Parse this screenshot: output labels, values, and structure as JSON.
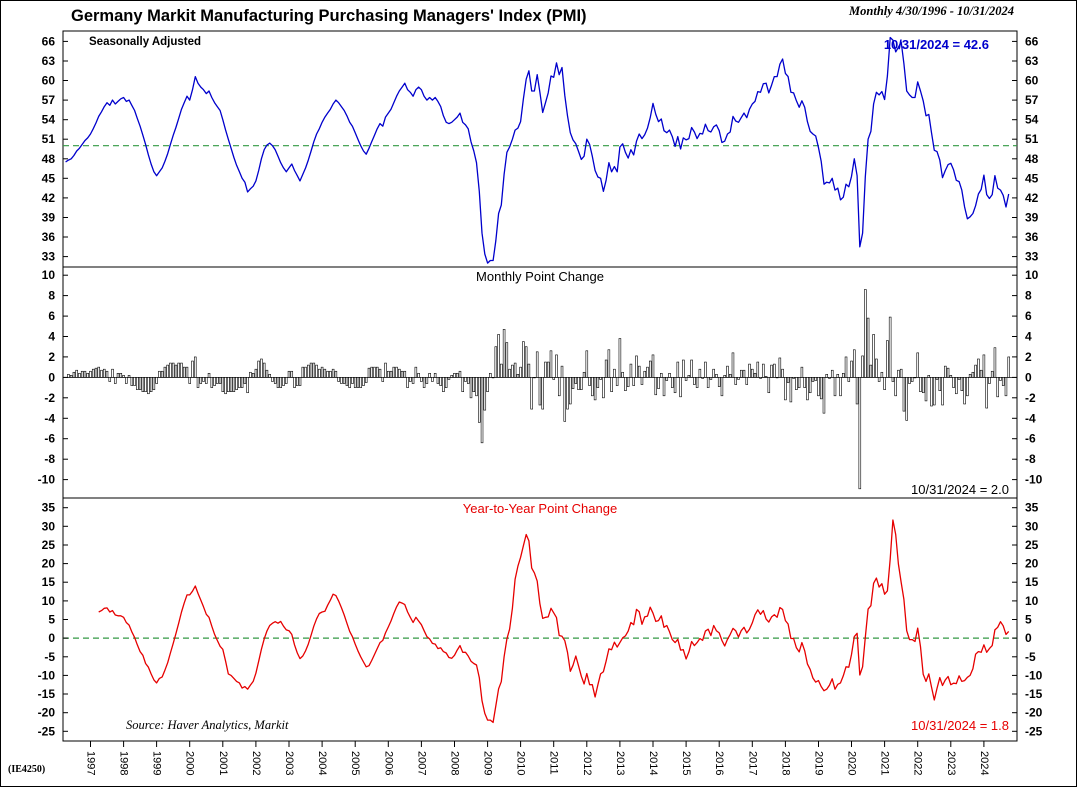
{
  "header": {
    "title": "Germany Markit Manufacturing Purchasing Managers' Index (PMI)",
    "date_range": "Monthly 4/30/1996 - 10/31/2024"
  },
  "source": "Source: Haver Analytics, Markit",
  "footer": {
    "code": "(IE4250)"
  },
  "colors": {
    "pmi_line": "#0000cc",
    "yoy_line": "#e60000",
    "bars": "#000000",
    "refline": "#339944"
  },
  "x_axis": {
    "tmin": 1996.17,
    "tmax": 2025.0,
    "year_labels": [
      "1997",
      "1998",
      "1999",
      "2000",
      "2001",
      "2002",
      "2003",
      "2004",
      "2005",
      "2006",
      "2007",
      "2008",
      "2009",
      "2010",
      "2011",
      "2012",
      "2013",
      "2014",
      "2015",
      "2016",
      "2017",
      "2018",
      "2019",
      "2020",
      "2021",
      "2022",
      "2023",
      "2024"
    ]
  },
  "chart_data": [
    {
      "type": "line",
      "name": "pmi-level",
      "label": "Seasonally Adjusted",
      "annotation": "10/31/2024 = 42.6",
      "latest": {
        "date": "10/31/2024",
        "value": 42.6
      },
      "color_key": "pmi_line",
      "ylim": [
        31.4,
        67.6
      ],
      "yticks": [
        33,
        36,
        39,
        42,
        45,
        48,
        51,
        54,
        57,
        60,
        63,
        66
      ],
      "refline": 50,
      "frequency": "monthly",
      "start": "1996-04",
      "values_by_year": {
        "1996": [
          null,
          null,
          null,
          47.5,
          47.8,
          48.0,
          48.5,
          49.2,
          49.6,
          50.2,
          50.8,
          51.2
        ],
        "1997": [
          51.8,
          52.6,
          53.5,
          54.5,
          55.2,
          56.0,
          56.6,
          56.2,
          57.0,
          56.4,
          56.8,
          57.2
        ],
        "1998": [
          57.4,
          56.8,
          57.0,
          56.2,
          55.4,
          54.2,
          53.0,
          51.6,
          50.2,
          48.6,
          47.2,
          46.0
        ],
        "1999": [
          45.4,
          46.0,
          46.6,
          47.6,
          48.8,
          50.2,
          51.6,
          52.8,
          54.2,
          55.6,
          56.6,
          57.6
        ],
        "2000": [
          57.0,
          58.6,
          60.6,
          59.6,
          59.0,
          58.6,
          58.0,
          58.4,
          57.4,
          56.6,
          56.0,
          55.4
        ],
        "2001": [
          54.0,
          52.4,
          51.0,
          49.6,
          48.2,
          47.0,
          46.0,
          45.0,
          44.4,
          42.9,
          43.4,
          43.8
        ],
        "2002": [
          44.6,
          46.2,
          48.0,
          49.4,
          50.1,
          50.4,
          50.0,
          49.4,
          48.4,
          47.4,
          46.6,
          46.0
        ],
        "2003": [
          46.6,
          47.2,
          46.2,
          45.4,
          44.6,
          45.6,
          46.6,
          47.8,
          49.2,
          50.6,
          51.8,
          52.6
        ],
        "2004": [
          53.6,
          54.4,
          55.0,
          55.6,
          56.4,
          57.0,
          56.6,
          56.0,
          55.4,
          54.6,
          53.6,
          53.0
        ],
        "2005": [
          52.0,
          51.0,
          50.0,
          49.2,
          48.7,
          49.6,
          50.6,
          51.6,
          52.6,
          53.4,
          53.0,
          54.4
        ],
        "2006": [
          55.0,
          55.6,
          56.6,
          57.6,
          58.4,
          59.0,
          59.6,
          58.6,
          58.2,
          57.6,
          58.6,
          59.0
        ],
        "2007": [
          58.6,
          57.6,
          57.0,
          57.4,
          57.0,
          57.4,
          56.8,
          56.0,
          54.6,
          53.6,
          53.4,
          53.6
        ],
        "2008": [
          54.0,
          54.4,
          55.0,
          53.6,
          53.2,
          52.6,
          50.6,
          49.2,
          47.4,
          43.0,
          36.6,
          33.4
        ],
        "2009": [
          32.0,
          32.4,
          32.4,
          35.4,
          39.6,
          40.9,
          45.6,
          49.0,
          49.8,
          51.0,
          52.4,
          52.7
        ],
        "2010": [
          53.7,
          57.2,
          60.2,
          61.5,
          58.4,
          58.4,
          60.9,
          58.2,
          55.1,
          56.6,
          58.1,
          60.7
        ],
        "2011": [
          60.5,
          62.7,
          60.9,
          62.0,
          57.7,
          54.6,
          52.0,
          50.9,
          50.3,
          49.1,
          47.9,
          48.4
        ],
        "2012": [
          51.0,
          50.2,
          48.4,
          46.2,
          45.2,
          45.0,
          43.0,
          44.7,
          47.4,
          46.0,
          46.8,
          46.0
        ],
        "2013": [
          49.8,
          50.3,
          49.0,
          48.1,
          49.4,
          48.6,
          50.7,
          51.8,
          51.1,
          51.7,
          52.7,
          54.3
        ],
        "2014": [
          56.5,
          54.8,
          53.7,
          54.1,
          52.3,
          52.0,
          52.4,
          51.4,
          49.9,
          51.4,
          49.5,
          51.2
        ],
        "2015": [
          50.9,
          51.1,
          52.8,
          52.1,
          51.1,
          51.9,
          51.8,
          53.3,
          52.3,
          52.1,
          52.9,
          53.2
        ],
        "2016": [
          52.3,
          50.5,
          50.7,
          51.8,
          52.1,
          54.5,
          53.8,
          53.6,
          54.3,
          55.0,
          54.3,
          55.6
        ],
        "2017": [
          56.4,
          56.8,
          58.3,
          58.2,
          59.5,
          59.6,
          58.1,
          59.3,
          60.6,
          60.6,
          62.5,
          63.3
        ],
        "2018": [
          61.1,
          60.6,
          58.2,
          58.1,
          56.9,
          55.9,
          56.9,
          55.9,
          53.7,
          52.2,
          51.8,
          51.5
        ],
        "2019": [
          49.7,
          47.6,
          44.1,
          44.4,
          44.3,
          45.0,
          43.2,
          43.5,
          41.7,
          42.1,
          44.1,
          43.7
        ],
        "2020": [
          45.3,
          48.0,
          45.4,
          34.5,
          36.6,
          45.2,
          51.0,
          52.2,
          56.4,
          58.2,
          57.8,
          58.3
        ],
        "2021": [
          57.1,
          60.7,
          66.6,
          66.2,
          64.4,
          65.1,
          65.9,
          62.6,
          58.4,
          57.8,
          57.4,
          57.4
        ],
        "2022": [
          59.8,
          58.4,
          56.9,
          54.6,
          54.8,
          52.0,
          49.3,
          49.1,
          47.8,
          45.1,
          46.2,
          47.1
        ],
        "2023": [
          47.3,
          46.3,
          44.7,
          44.5,
          43.2,
          40.6,
          38.8,
          39.1,
          39.6,
          40.8,
          42.6,
          43.3
        ],
        "2024": [
          45.5,
          42.5,
          41.9,
          42.5,
          45.4,
          43.5,
          43.2,
          42.4,
          40.6,
          42.6
        ]
      }
    },
    {
      "type": "bar",
      "name": "monthly-point-change",
      "title": "Monthly Point Change",
      "annotation": "10/31/2024 = 2.0",
      "latest": {
        "date": "10/31/2024",
        "value": 2.0
      },
      "ylim": [
        -11.8,
        10.8
      ],
      "yticks": [
        -10,
        -8,
        -6,
        -4,
        -2,
        0,
        2,
        4,
        6,
        8,
        10
      ],
      "derived": "month_over_month_difference_of_pmi_level"
    },
    {
      "type": "line",
      "name": "year-to-year-point-change",
      "title": "Year-to-Year Point Change",
      "annotation": "10/31/2024 = 1.8",
      "latest": {
        "date": "10/31/2024",
        "value": 1.8
      },
      "color_key": "yoy_line",
      "ylim": [
        -27.6,
        37.6
      ],
      "yticks": [
        -25,
        -20,
        -15,
        -10,
        -5,
        0,
        5,
        10,
        15,
        20,
        25,
        30,
        35
      ],
      "refline": 0,
      "derived": "year_over_year_difference_of_pmi_level"
    }
  ]
}
